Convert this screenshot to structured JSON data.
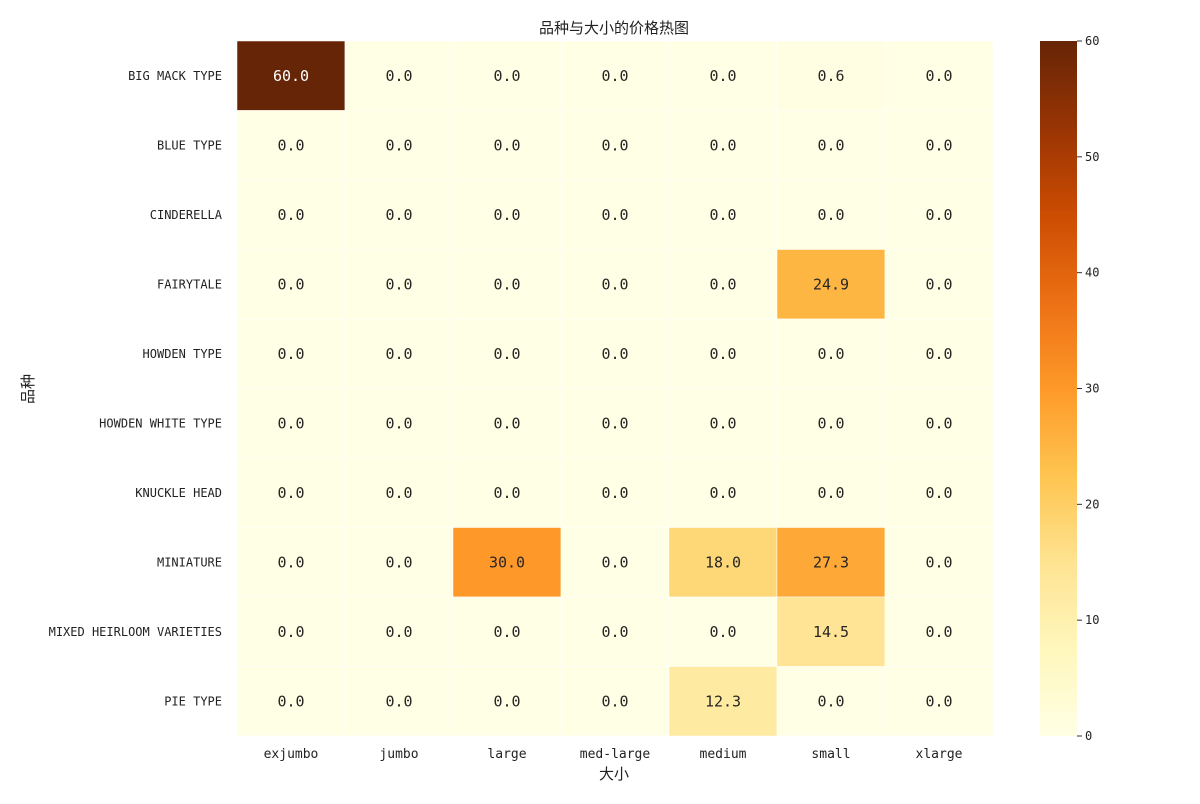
{
  "chart_data": {
    "type": "heatmap",
    "title": "品种与大小的价格热图",
    "xlabel": "大小",
    "ylabel": "品种",
    "x_categories": [
      "exjumbo",
      "jumbo",
      "large",
      "med-large",
      "medium",
      "small",
      "xlarge"
    ],
    "y_categories": [
      "BIG MACK TYPE",
      "BLUE TYPE",
      "CINDERELLA",
      "FAIRYTALE",
      "HOWDEN TYPE",
      "HOWDEN WHITE TYPE",
      "KNUCKLE HEAD",
      "MINIATURE",
      "MIXED HEIRLOOM VARIETIES",
      "PIE TYPE"
    ],
    "values": [
      [
        60.0,
        0.0,
        0.0,
        0.0,
        0.0,
        0.6,
        0.0
      ],
      [
        0.0,
        0.0,
        0.0,
        0.0,
        0.0,
        0.0,
        0.0
      ],
      [
        0.0,
        0.0,
        0.0,
        0.0,
        0.0,
        0.0,
        0.0
      ],
      [
        0.0,
        0.0,
        0.0,
        0.0,
        0.0,
        24.9,
        0.0
      ],
      [
        0.0,
        0.0,
        0.0,
        0.0,
        0.0,
        0.0,
        0.0
      ],
      [
        0.0,
        0.0,
        0.0,
        0.0,
        0.0,
        0.0,
        0.0
      ],
      [
        0.0,
        0.0,
        0.0,
        0.0,
        0.0,
        0.0,
        0.0
      ],
      [
        0.0,
        0.0,
        30.0,
        0.0,
        18.0,
        27.3,
        0.0
      ],
      [
        0.0,
        0.0,
        0.0,
        0.0,
        0.0,
        14.5,
        0.0
      ],
      [
        0.0,
        0.0,
        0.0,
        0.0,
        12.3,
        0.0,
        0.0
      ]
    ],
    "colorbar": {
      "range": [
        0,
        60
      ],
      "ticks": [
        0,
        10,
        20,
        30,
        40,
        50,
        60
      ],
      "colormap": "YlOrBr",
      "stops": [
        "#ffffe5",
        "#fff7bc",
        "#fee391",
        "#fec44f",
        "#fe9929",
        "#ec7014",
        "#cc4c02",
        "#993404",
        "#662506"
      ]
    },
    "annotation_format": "0.1f",
    "grid": false
  }
}
